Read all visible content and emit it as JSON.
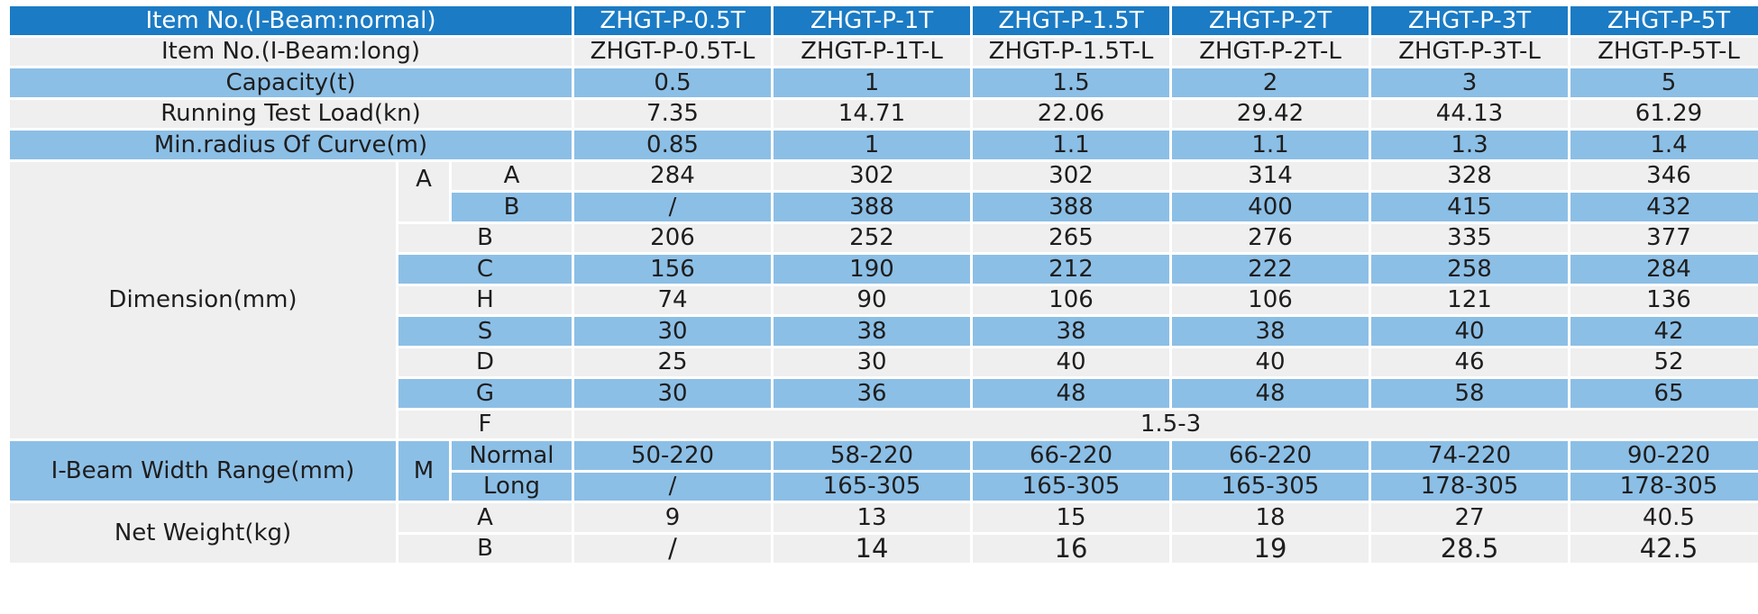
{
  "header": {
    "label": "Item No.(I-Beam:normal)",
    "models": [
      "ZHGT-P-0.5T",
      "ZHGT-P-1T",
      "ZHGT-P-1.5T",
      "ZHGT-P-2T",
      "ZHGT-P-3T",
      "ZHGT-P-5T"
    ]
  },
  "rows": {
    "item_long": {
      "label": "Item No.(I-Beam:long)",
      "values": [
        "ZHGT-P-0.5T-L",
        "ZHGT-P-1T-L",
        "ZHGT-P-1.5T-L",
        "ZHGT-P-2T-L",
        "ZHGT-P-3T-L",
        "ZHGT-P-5T-L"
      ]
    },
    "capacity": {
      "label": "Capacity(t)",
      "values": [
        "0.5",
        "1",
        "1.5",
        "2",
        "3",
        "5"
      ]
    },
    "test_load": {
      "label": "Running Test Load(kn)",
      "values": [
        "7.35",
        "14.71",
        "22.06",
        "29.42",
        "44.13",
        "61.29"
      ]
    },
    "min_radius": {
      "label": "Min.radius Of Curve(m)",
      "values": [
        "0.85",
        "1",
        "1.1",
        "1.1",
        "1.3",
        "1.4"
      ]
    }
  },
  "dimension": {
    "label": "Dimension(mm)",
    "group_a": "A",
    "a_a": {
      "label": "A",
      "values": [
        "284",
        "302",
        "302",
        "314",
        "328",
        "346"
      ]
    },
    "a_b": {
      "label": "B",
      "values": [
        "/",
        "388",
        "388",
        "400",
        "415",
        "432"
      ]
    },
    "b": {
      "label": "B",
      "values": [
        "206",
        "252",
        "265",
        "276",
        "335",
        "377"
      ]
    },
    "c": {
      "label": "C",
      "values": [
        "156",
        "190",
        "212",
        "222",
        "258",
        "284"
      ]
    },
    "h": {
      "label": "H",
      "values": [
        "74",
        "90",
        "106",
        "106",
        "121",
        "136"
      ]
    },
    "s": {
      "label": "S",
      "values": [
        "30",
        "38",
        "38",
        "38",
        "40",
        "42"
      ]
    },
    "d": {
      "label": "D",
      "values": [
        "25",
        "30",
        "40",
        "40",
        "46",
        "52"
      ]
    },
    "g": {
      "label": "G",
      "values": [
        "30",
        "36",
        "48",
        "48",
        "58",
        "65"
      ]
    },
    "f": {
      "label": "F",
      "value": "1.5-3"
    }
  },
  "beam_width": {
    "label": "I-Beam Width Range(mm)",
    "group": "M",
    "normal": {
      "label": "Normal",
      "values": [
        "50-220",
        "58-220",
        "66-220",
        "66-220",
        "74-220",
        "90-220"
      ]
    },
    "long": {
      "label": "Long",
      "values": [
        "/",
        "165-305",
        "165-305",
        "165-305",
        "178-305",
        "178-305"
      ]
    }
  },
  "net_weight": {
    "label": "Net Weight(kg)",
    "a": {
      "label": "A",
      "values": [
        "9",
        "13",
        "15",
        "18",
        "27",
        "40.5"
      ]
    },
    "b": {
      "label": "B",
      "values": [
        "/",
        "14",
        "16",
        "19",
        "28.5",
        "42.5"
      ]
    }
  },
  "colors": {
    "header_blue": "#1b7bc4",
    "row_blue": "#8cbfe6",
    "row_grey": "#efefef"
  }
}
